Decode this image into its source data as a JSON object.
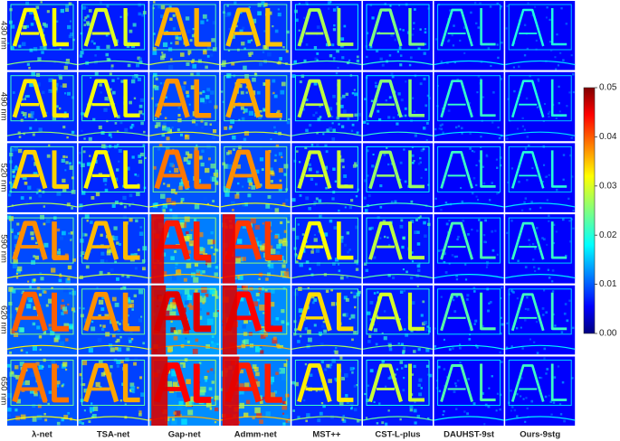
{
  "figure": {
    "row_labels": [
      "430 nm",
      "490 nm",
      "520 nm",
      "590 nm",
      "620 nm",
      "650 nm"
    ],
    "column_labels": [
      "λ-net",
      "TSA-net",
      "Gap-net",
      "Admm-net",
      "MST++",
      "CST-L-plus",
      "DAUHST-9st",
      "Ours-9stg"
    ],
    "colorbar": {
      "lim": [
        0,
        0.05
      ],
      "ticks": [
        {
          "value": 0,
          "label": "0.00"
        },
        {
          "value": 0.01,
          "label": "0.01"
        },
        {
          "value": 0.02,
          "label": "0.02"
        },
        {
          "value": 0.03,
          "label": "0.03"
        },
        {
          "value": 0.04,
          "label": "0.04"
        },
        {
          "value": 0.05,
          "label": "0.05"
        }
      ]
    }
  }
}
